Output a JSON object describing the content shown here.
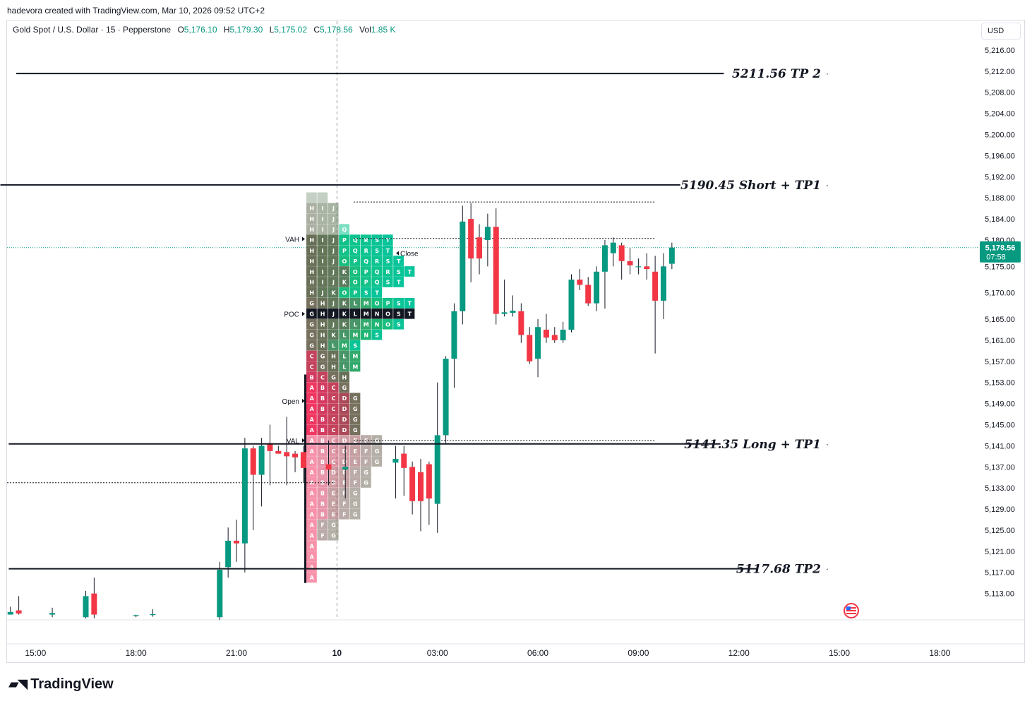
{
  "header": {
    "credit": "hadevora created with TradingView.com, Mar 10, 2026 09:52 UTC+2",
    "symbol": "Gold Spot / U.S. Dollar · 15 · Pepperstone",
    "open": "5,176.10",
    "high": "5,179.30",
    "low": "5,175.02",
    "close": "5,178.56",
    "volume": "1.85 K",
    "currency": "USD"
  },
  "footer": {
    "brand": "TradingView"
  },
  "colors": {
    "up": "#089981",
    "down": "#f23645",
    "last": "#089981",
    "grid": "#f0f3fa",
    "axis": "#e0e3eb"
  },
  "chart_data": {
    "type": "candlestick",
    "timeframe": "15",
    "x_ticks": [
      {
        "t": 0,
        "label": "15:00"
      },
      {
        "t": 12,
        "label": "18:00"
      },
      {
        "t": 24,
        "label": "21:00"
      },
      {
        "t": 36,
        "label": "10"
      },
      {
        "t": 48,
        "label": "03:00"
      },
      {
        "t": 60,
        "label": "06:00"
      },
      {
        "t": 72,
        "label": "09:00"
      },
      {
        "t": 84,
        "label": "12:00"
      },
      {
        "t": 96,
        "label": "15:00"
      },
      {
        "t": 108,
        "label": "18:00"
      }
    ],
    "x_range": [
      -3.4,
      112.6
    ],
    "y_ticks": [
      "5,216.00",
      "5,212.00",
      "5,208.00",
      "5,204.00",
      "5,200.00",
      "5,196.00",
      "5,192.00",
      "5,188.00",
      "5,184.00",
      "5,180.00",
      "5,175.00",
      "5,170.00",
      "5,165.00",
      "5,161.00",
      "5,157.00",
      "5,153.00",
      "5,149.00",
      "5,145.00",
      "5,141.00",
      "5,137.00",
      "5,133.00",
      "5,129.00",
      "5,125.00",
      "5,121.00",
      "5,117.00",
      "5,113.00"
    ],
    "y_range": [
      5108.0,
      5218.0
    ],
    "last_price": {
      "value": 5178.56,
      "label": "5,178.56",
      "countdown": "07:58"
    },
    "session_divider_t": 36,
    "candles": [
      {
        "t": -3,
        "o": 5109.0,
        "h": 5110.5,
        "l": 5109.0,
        "c": 5109.5
      },
      {
        "t": -2,
        "o": 5109.8,
        "h": 5112.5,
        "l": 5109.0,
        "c": 5109.2
      },
      {
        "t": 2,
        "o": 5109.0,
        "h": 5110.3,
        "l": 5108.5,
        "c": 5109.3
      },
      {
        "t": 6,
        "o": 5108.5,
        "h": 5113.5,
        "l": 5108.3,
        "c": 5112.5
      },
      {
        "t": 7,
        "o": 5113.0,
        "h": 5116.0,
        "l": 5108.3,
        "c": 5109.0
      },
      {
        "t": 12,
        "o": 5108.8,
        "h": 5109.0,
        "l": 5108.5,
        "c": 5108.9
      },
      {
        "t": 14,
        "o": 5108.9,
        "h": 5110.0,
        "l": 5108.6,
        "c": 5109.1
      },
      {
        "t": 22,
        "o": 5108.5,
        "h": 5119.0,
        "l": 5108.0,
        "c": 5117.5
      },
      {
        "t": 23,
        "o": 5118.0,
        "h": 5125.5,
        "l": 5116.0,
        "c": 5123.0
      },
      {
        "t": 24,
        "o": 5123.0,
        "h": 5127.0,
        "l": 5119.0,
        "c": 5122.5
      },
      {
        "t": 25,
        "o": 5122.5,
        "h": 5142.5,
        "l": 5117.0,
        "c": 5140.5
      },
      {
        "t": 26,
        "o": 5140.5,
        "h": 5141.0,
        "l": 5125.0,
        "c": 5135.5
      },
      {
        "t": 27,
        "o": 5135.5,
        "h": 5142.5,
        "l": 5129.5,
        "c": 5141.0
      },
      {
        "t": 28,
        "o": 5141.5,
        "h": 5145.0,
        "l": 5133.5,
        "c": 5140.0
      },
      {
        "t": 29,
        "o": 5140.0,
        "h": 5141.0,
        "l": 5139.5,
        "c": 5139.5
      },
      {
        "t": 30,
        "o": 5139.8,
        "h": 5146.5,
        "l": 5133.5,
        "c": 5139.0
      },
      {
        "t": 31,
        "o": 5139.5,
        "h": 5140.0,
        "l": 5136.0,
        "c": 5138.8
      },
      {
        "t": 32,
        "o": 5139.8,
        "h": 5141.0,
        "l": 5134.0,
        "c": 5136.8
      },
      {
        "t": 35,
        "o": 5137.5,
        "h": 5142.0,
        "l": 5133.5,
        "c": 5136.5
      },
      {
        "t": 37,
        "o": 5136.5,
        "h": 5141.0,
        "l": 5131.0,
        "c": 5137.0
      },
      {
        "t": 43,
        "o": 5137.8,
        "h": 5141.0,
        "l": 5131.0,
        "c": 5138.5
      },
      {
        "t": 44,
        "o": 5139.5,
        "h": 5141.0,
        "l": 5131.5,
        "c": 5136.8
      },
      {
        "t": 45,
        "o": 5137.0,
        "h": 5138.0,
        "l": 5128.0,
        "c": 5130.5
      },
      {
        "t": 46,
        "o": 5136.0,
        "h": 5138.5,
        "l": 5124.8,
        "c": 5130.5
      },
      {
        "t": 47,
        "o": 5137.5,
        "h": 5138.0,
        "l": 5126.0,
        "c": 5131.0
      },
      {
        "t": 48,
        "o": 5130.0,
        "h": 5153.0,
        "l": 5124.5,
        "c": 5143.0
      },
      {
        "t": 49,
        "o": 5143.0,
        "h": 5158.0,
        "l": 5141.5,
        "c": 5157.5
      },
      {
        "t": 50,
        "o": 5157.5,
        "h": 5168.0,
        "l": 5152.0,
        "c": 5166.5
      },
      {
        "t": 51,
        "o": 5166.5,
        "h": 5186.5,
        "l": 5164.0,
        "c": 5183.5
      },
      {
        "t": 52,
        "o": 5184.0,
        "h": 5187.0,
        "l": 5172.0,
        "c": 5176.5
      },
      {
        "t": 53,
        "o": 5180.5,
        "h": 5183.0,
        "l": 5173.5,
        "c": 5176.5
      },
      {
        "t": 54,
        "o": 5180.0,
        "h": 5185.0,
        "l": 5175.0,
        "c": 5182.5
      },
      {
        "t": 55,
        "o": 5182.5,
        "h": 5186.0,
        "l": 5164.0,
        "c": 5166.0
      },
      {
        "t": 56,
        "o": 5166.0,
        "h": 5172.5,
        "l": 5165.5,
        "c": 5166.3
      },
      {
        "t": 57,
        "o": 5166.2,
        "h": 5169.5,
        "l": 5165.5,
        "c": 5166.6
      },
      {
        "t": 58,
        "o": 5166.5,
        "h": 5168.0,
        "l": 5160.5,
        "c": 5162.0
      },
      {
        "t": 59,
        "o": 5162.0,
        "h": 5163.5,
        "l": 5156.5,
        "c": 5157.0
      },
      {
        "t": 60,
        "o": 5157.5,
        "h": 5165.0,
        "l": 5154.0,
        "c": 5163.5
      },
      {
        "t": 61,
        "o": 5163.0,
        "h": 5166.0,
        "l": 5160.5,
        "c": 5161.5
      },
      {
        "t": 62,
        "o": 5162.0,
        "h": 5163.5,
        "l": 5160.5,
        "c": 5161.0
      },
      {
        "t": 63,
        "o": 5161.0,
        "h": 5164.5,
        "l": 5160.5,
        "c": 5163.0
      },
      {
        "t": 64,
        "o": 5163.0,
        "h": 5173.5,
        "l": 5162.5,
        "c": 5172.5
      },
      {
        "t": 65,
        "o": 5172.5,
        "h": 5174.5,
        "l": 5170.5,
        "c": 5171.5
      },
      {
        "t": 66,
        "o": 5171.5,
        "h": 5173.0,
        "l": 5167.5,
        "c": 5168.0
      },
      {
        "t": 67,
        "o": 5168.0,
        "h": 5175.0,
        "l": 5166.5,
        "c": 5174.0
      },
      {
        "t": 68,
        "o": 5174.0,
        "h": 5180.0,
        "l": 5167.0,
        "c": 5179.0
      },
      {
        "t": 69,
        "o": 5177.5,
        "h": 5180.5,
        "l": 5175.0,
        "c": 5179.5
      },
      {
        "t": 70,
        "o": 5179.0,
        "h": 5179.5,
        "l": 5172.5,
        "c": 5176.0
      },
      {
        "t": 71,
        "o": 5176.0,
        "h": 5178.5,
        "l": 5173.5,
        "c": 5175.2
      },
      {
        "t": 72,
        "o": 5175.0,
        "h": 5176.5,
        "l": 5173.5,
        "c": 5175.0
      },
      {
        "t": 73,
        "o": 5175.0,
        "h": 5177.5,
        "l": 5172.5,
        "c": 5174.5
      },
      {
        "t": 74,
        "o": 5174.0,
        "h": 5177.0,
        "l": 5158.5,
        "c": 5168.5
      },
      {
        "t": 75,
        "o": 5168.5,
        "h": 5177.5,
        "l": 5165.0,
        "c": 5175.0
      },
      {
        "t": 76,
        "o": 5175.5,
        "h": 5179.5,
        "l": 5174.5,
        "c": 5178.56
      }
    ],
    "levels": [
      {
        "price": 5211.56,
        "label": "5211.56 TP 2",
        "t1": -2.3,
        "t2": 82.2
      },
      {
        "price": 5190.45,
        "label": "5190.45 Short + TP1",
        "t1": -4.2,
        "t2": 77.0
      },
      {
        "price": 5141.35,
        "label": "5141.35 Long + TP1",
        "t1": -3.2,
        "t2": 81.8
      },
      {
        "price": 5117.68,
        "label": "5117.68 TP2",
        "t1": -3.2,
        "t2": 86.3
      }
    ],
    "dotted_levels": [
      {
        "price": 5187.2,
        "t1": 38.0,
        "t2": 74.0
      },
      {
        "price": 5180.3,
        "t1": 38.0,
        "t2": 74.0
      },
      {
        "price": 5142.0,
        "t1": 38.0,
        "t2": 74.0
      },
      {
        "price": 5134.0,
        "t1": -3.4,
        "t2": 35.8
      }
    ],
    "market_profile": {
      "annotations": [
        {
          "label": "VAH",
          "price": 5180.2
        },
        {
          "label": "POC",
          "price": 5166.0
        },
        {
          "label": "Open",
          "price": 5149.5
        },
        {
          "label": "VAL",
          "price": 5142.0
        },
        {
          "label": "Close",
          "price": 5177.5
        }
      ],
      "poc_price": 5166.0,
      "rows": [
        {
          "p": 5188.0,
          "l": "  "
        },
        {
          "p": 5186.0,
          "l": "HIJ"
        },
        {
          "p": 5184.0,
          "l": "HIJ"
        },
        {
          "p": 5182.0,
          "l": "HIJQ"
        },
        {
          "p": 5180.0,
          "l": "HIJPQRST"
        },
        {
          "p": 5178.0,
          "l": "HIJPQRST"
        },
        {
          "p": 5176.0,
          "l": "HIJOPQRST"
        },
        {
          "p": 5174.0,
          "l": "HIJKOPQRST"
        },
        {
          "p": 5172.0,
          "l": "HIJKOPQST"
        },
        {
          "p": 5170.0,
          "l": "HJKOPST"
        },
        {
          "p": 5168.0,
          "l": "GHJKLMOPST"
        },
        {
          "p": 5166.0,
          "l": "GHJKLMNOST"
        },
        {
          "p": 5164.0,
          "l": "GHJKLMNOS"
        },
        {
          "p": 5162.0,
          "l": "GHKLMNS"
        },
        {
          "p": 5160.0,
          "l": "GHLMS"
        },
        {
          "p": 5158.0,
          "l": "CGHLM"
        },
        {
          "p": 5156.0,
          "l": "CGHLM"
        },
        {
          "p": 5154.0,
          "l": "BCGH"
        },
        {
          "p": 5152.0,
          "l": "ABCG"
        },
        {
          "p": 5150.0,
          "l": "ABCDG"
        },
        {
          "p": 5148.0,
          "l": "ABCDG"
        },
        {
          "p": 5146.0,
          "l": "ABCDG"
        },
        {
          "p": 5144.0,
          "l": "ABCDG"
        },
        {
          "p": 5142.0,
          "l": "ABCDEFG"
        },
        {
          "p": 5140.0,
          "l": "ABCDEFG"
        },
        {
          "p": 5138.0,
          "l": "ABCDEFG"
        },
        {
          "p": 5136.0,
          "l": "ABDEFG"
        },
        {
          "p": 5134.0,
          "l": "ABDEFG"
        },
        {
          "p": 5132.0,
          "l": "ABEFG"
        },
        {
          "p": 5130.0,
          "l": "ABEFG"
        },
        {
          "p": 5128.0,
          "l": "ABEFG"
        },
        {
          "p": 5126.0,
          "l": "AFG"
        },
        {
          "p": 5124.0,
          "l": "AFG"
        },
        {
          "p": 5122.0,
          "l": "A"
        },
        {
          "p": 5120.0,
          "l": "A"
        },
        {
          "p": 5118.0,
          "l": "A"
        },
        {
          "p": 5116.0,
          "l": "A"
        }
      ]
    }
  }
}
